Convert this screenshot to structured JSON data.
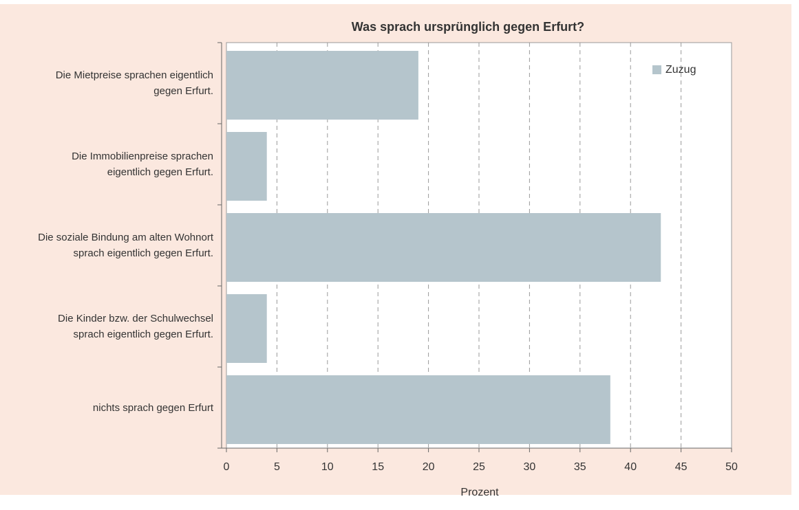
{
  "chart_data": {
    "type": "hbar",
    "title": "Was sprach ursprünglich gegen Erfurt?",
    "x_label": "Prozent",
    "categories": [
      "Die Mietpreise sprachen eigentlich gegen Erfurt.",
      "Die Immobilienpreise sprachen eigentlich gegen Erfurt.",
      "Die soziale Bindung am alten Wohnort sprach eigentlich gegen Erfurt.",
      "Die Kinder bzw. der Schulwechsel sprach eigentlich gegen Erfurt.",
      "nichts sprach gegen Erfurt"
    ],
    "series": [
      {
        "name": "Zuzug",
        "color": "#b5c5cc",
        "values": [
          19,
          4,
          43,
          4,
          38
        ]
      }
    ],
    "xlim": [
      0,
      50
    ],
    "xticks": [
      0,
      5,
      10,
      15,
      20,
      25,
      30,
      35,
      40,
      45,
      50
    ],
    "grid": true,
    "legend": "top-right"
  }
}
